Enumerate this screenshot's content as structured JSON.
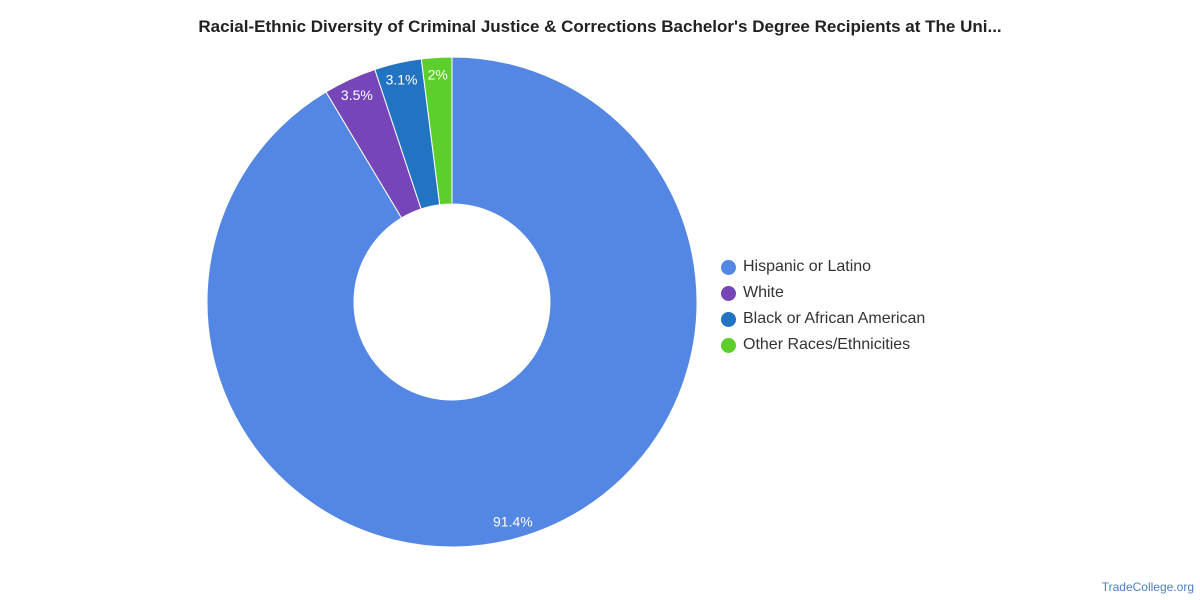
{
  "chart_data": {
    "type": "pie",
    "title": "Racial-Ethnic Diversity of Criminal Justice & Corrections Bachelor's Degree Recipients at The Uni...",
    "donut": true,
    "legend_position": "right",
    "slices": [
      {
        "label": "Hispanic or Latino",
        "value": 91.4,
        "display": "91.4%",
        "color": "#5486e3"
      },
      {
        "label": "White",
        "value": 3.5,
        "display": "3.5%",
        "color": "#7646b8"
      },
      {
        "label": "Black or African American",
        "value": 3.1,
        "display": "3.1%",
        "color": "#2273c2"
      },
      {
        "label": "Other Races/Ethnicities",
        "value": 2.0,
        "display": "2%",
        "color": "#5dcf2c"
      }
    ]
  },
  "watermark": "TradeCollege.org"
}
